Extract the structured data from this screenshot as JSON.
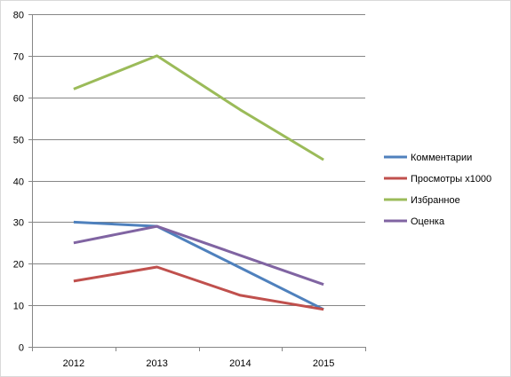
{
  "chart_data": {
    "type": "line",
    "title": "",
    "xlabel": "",
    "ylabel": "",
    "categories": [
      "2012",
      "2013",
      "2014",
      "2015"
    ],
    "ylim": [
      0,
      80
    ],
    "yticks": [
      0,
      10,
      20,
      30,
      40,
      50,
      60,
      70,
      80
    ],
    "grid": true,
    "legend_position": "right",
    "series": [
      {
        "name": "Комментарии",
        "color": "#4F81BD",
        "values": [
          30,
          29,
          19,
          9
        ]
      },
      {
        "name": "Просмотры x1000",
        "color": "#C0504D",
        "values": [
          15.8,
          19.2,
          12.4,
          9
        ]
      },
      {
        "name": "Избранное",
        "color": "#9BBB59",
        "values": [
          62,
          70,
          57,
          45
        ]
      },
      {
        "name": "Оценка",
        "color": "#8064A2",
        "values": [
          25,
          29,
          22,
          15
        ]
      }
    ]
  }
}
